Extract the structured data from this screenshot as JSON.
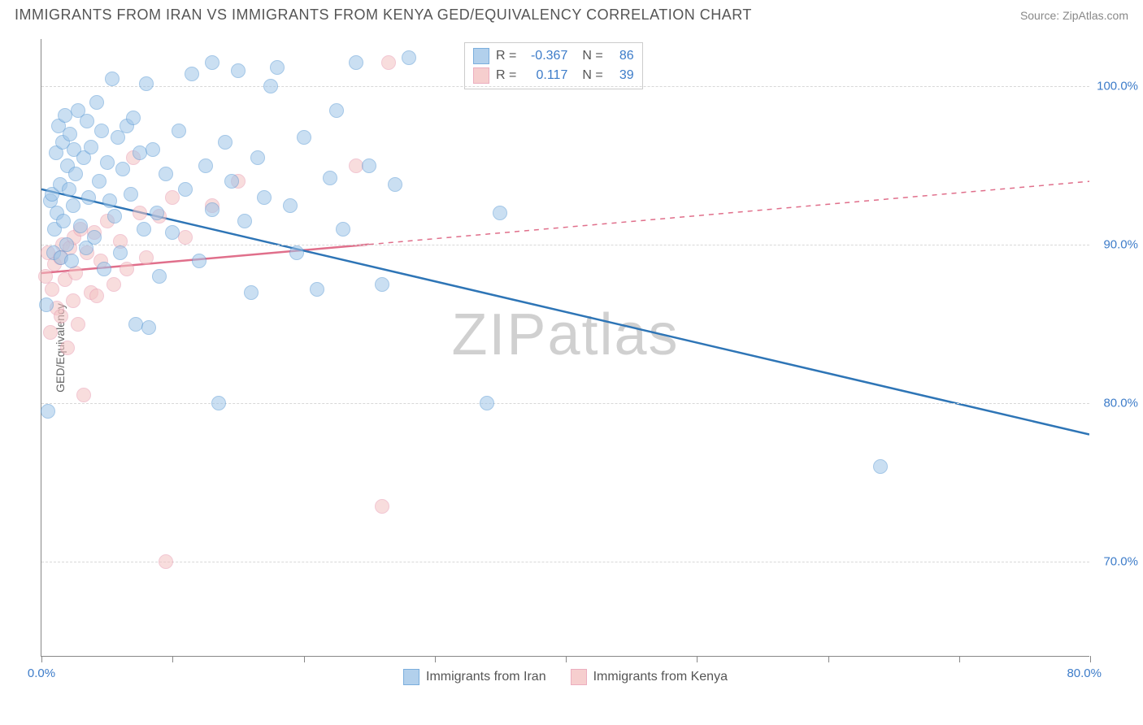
{
  "header": {
    "title": "IMMIGRANTS FROM IRAN VS IMMIGRANTS FROM KENYA GED/EQUIVALENCY CORRELATION CHART",
    "source": "Source: ZipAtlas.com"
  },
  "chart": {
    "type": "scatter",
    "y_axis_label": "GED/Equivalency",
    "x_range": [
      0,
      80
    ],
    "y_range": [
      64,
      103
    ],
    "y_gridlines": [
      70,
      80,
      90,
      100
    ],
    "y_tick_labels": [
      "70.0%",
      "80.0%",
      "90.0%",
      "100.0%"
    ],
    "x_ticks": [
      0,
      10,
      20,
      30,
      40,
      50,
      60,
      70,
      80
    ],
    "x_tick_label_left": "0.0%",
    "x_tick_label_right": "80.0%",
    "grid_color": "#d8d8d8",
    "axis_color": "#888888",
    "series1": {
      "label": "Immigrants from Iran",
      "fill_color": "#9fc5e8",
      "stroke_color": "#5b9bd5",
      "fill_opacity": 0.55,
      "line_color": "#2e75b6",
      "r_value": "-0.367",
      "n_value": "86",
      "trend": {
        "y_at_x0": 93.5,
        "y_at_x80": 78.0,
        "solid_until_x": 80
      },
      "points": [
        [
          0.4,
          86.2
        ],
        [
          0.5,
          79.5
        ],
        [
          0.7,
          92.8
        ],
        [
          0.8,
          93.2
        ],
        [
          0.9,
          89.5
        ],
        [
          1.0,
          91.0
        ],
        [
          1.1,
          95.8
        ],
        [
          1.2,
          92.0
        ],
        [
          1.3,
          97.5
        ],
        [
          1.4,
          93.8
        ],
        [
          1.5,
          89.2
        ],
        [
          1.6,
          96.5
        ],
        [
          1.7,
          91.5
        ],
        [
          1.8,
          98.2
        ],
        [
          1.9,
          90.0
        ],
        [
          2.0,
          95.0
        ],
        [
          2.1,
          93.5
        ],
        [
          2.2,
          97.0
        ],
        [
          2.3,
          89.0
        ],
        [
          2.4,
          92.5
        ],
        [
          2.5,
          96.0
        ],
        [
          2.6,
          94.5
        ],
        [
          2.8,
          98.5
        ],
        [
          3.0,
          91.2
        ],
        [
          3.2,
          95.5
        ],
        [
          3.4,
          89.8
        ],
        [
          3.5,
          97.8
        ],
        [
          3.6,
          93.0
        ],
        [
          3.8,
          96.2
        ],
        [
          4.0,
          90.5
        ],
        [
          4.2,
          99.0
        ],
        [
          4.4,
          94.0
        ],
        [
          4.6,
          97.2
        ],
        [
          4.8,
          88.5
        ],
        [
          5.0,
          95.2
        ],
        [
          5.2,
          92.8
        ],
        [
          5.4,
          100.5
        ],
        [
          5.6,
          91.8
        ],
        [
          5.8,
          96.8
        ],
        [
          6.0,
          89.5
        ],
        [
          6.2,
          94.8
        ],
        [
          6.5,
          97.5
        ],
        [
          6.8,
          93.2
        ],
        [
          7.0,
          98.0
        ],
        [
          7.2,
          85.0
        ],
        [
          7.5,
          95.8
        ],
        [
          7.8,
          91.0
        ],
        [
          8.0,
          100.2
        ],
        [
          8.2,
          84.8
        ],
        [
          8.5,
          96.0
        ],
        [
          8.8,
          92.0
        ],
        [
          9.0,
          88.0
        ],
        [
          9.5,
          94.5
        ],
        [
          10.0,
          90.8
        ],
        [
          10.5,
          97.2
        ],
        [
          11.0,
          93.5
        ],
        [
          11.5,
          100.8
        ],
        [
          12.0,
          89.0
        ],
        [
          12.5,
          95.0
        ],
        [
          13.0,
          92.2
        ],
        [
          13.5,
          80.0
        ],
        [
          14.0,
          96.5
        ],
        [
          14.5,
          94.0
        ],
        [
          15.0,
          101.0
        ],
        [
          15.5,
          91.5
        ],
        [
          16.0,
          87.0
        ],
        [
          16.5,
          95.5
        ],
        [
          17.0,
          93.0
        ],
        [
          17.5,
          100.0
        ],
        [
          18.0,
          101.2
        ],
        [
          19.0,
          92.5
        ],
        [
          19.5,
          89.5
        ],
        [
          20.0,
          96.8
        ],
        [
          21.0,
          87.2
        ],
        [
          22.0,
          94.2
        ],
        [
          22.5,
          98.5
        ],
        [
          23.0,
          91.0
        ],
        [
          24.0,
          101.5
        ],
        [
          25.0,
          95.0
        ],
        [
          26.0,
          87.5
        ],
        [
          27.0,
          93.8
        ],
        [
          28.0,
          101.8
        ],
        [
          34.0,
          80.0
        ],
        [
          35.0,
          92.0
        ],
        [
          64.0,
          76.0
        ],
        [
          13.0,
          101.5
        ]
      ]
    },
    "series2": {
      "label": "Immigrants from Kenya",
      "fill_color": "#f4c2c2",
      "stroke_color": "#e89bb0",
      "fill_opacity": 0.55,
      "line_color": "#e06f8b",
      "r_value": "0.117",
      "n_value": "39",
      "trend": {
        "y_at_x0": 88.2,
        "y_at_x80": 94.0,
        "solid_until_x": 25
      },
      "points": [
        [
          0.3,
          88.0
        ],
        [
          0.5,
          89.5
        ],
        [
          0.7,
          84.5
        ],
        [
          0.8,
          87.2
        ],
        [
          1.0,
          88.8
        ],
        [
          1.2,
          86.0
        ],
        [
          1.4,
          89.2
        ],
        [
          1.5,
          85.5
        ],
        [
          1.6,
          90.0
        ],
        [
          1.8,
          87.8
        ],
        [
          2.0,
          83.5
        ],
        [
          2.2,
          89.8
        ],
        [
          2.4,
          86.5
        ],
        [
          2.5,
          90.5
        ],
        [
          2.6,
          88.2
        ],
        [
          2.8,
          85.0
        ],
        [
          3.0,
          91.0
        ],
        [
          3.2,
          80.5
        ],
        [
          3.5,
          89.5
        ],
        [
          3.8,
          87.0
        ],
        [
          4.0,
          90.8
        ],
        [
          4.2,
          86.8
        ],
        [
          4.5,
          89.0
        ],
        [
          5.0,
          91.5
        ],
        [
          5.5,
          87.5
        ],
        [
          6.0,
          90.2
        ],
        [
          6.5,
          88.5
        ],
        [
          7.0,
          95.5
        ],
        [
          7.5,
          92.0
        ],
        [
          8.0,
          89.2
        ],
        [
          9.0,
          91.8
        ],
        [
          9.5,
          70.0
        ],
        [
          10.0,
          93.0
        ],
        [
          11.0,
          90.5
        ],
        [
          13.0,
          92.5
        ],
        [
          15.0,
          94.0
        ],
        [
          24.0,
          95.0
        ],
        [
          26.0,
          73.5
        ],
        [
          26.5,
          101.5
        ]
      ]
    }
  },
  "stat_legend": {
    "r_label": "R =",
    "n_label": "N ="
  },
  "bottom_legend": {
    "items": [
      "Immigrants from Iran",
      "Immigrants from Kenya"
    ]
  },
  "watermark": {
    "part1": "ZIP",
    "part2": "atlas"
  }
}
